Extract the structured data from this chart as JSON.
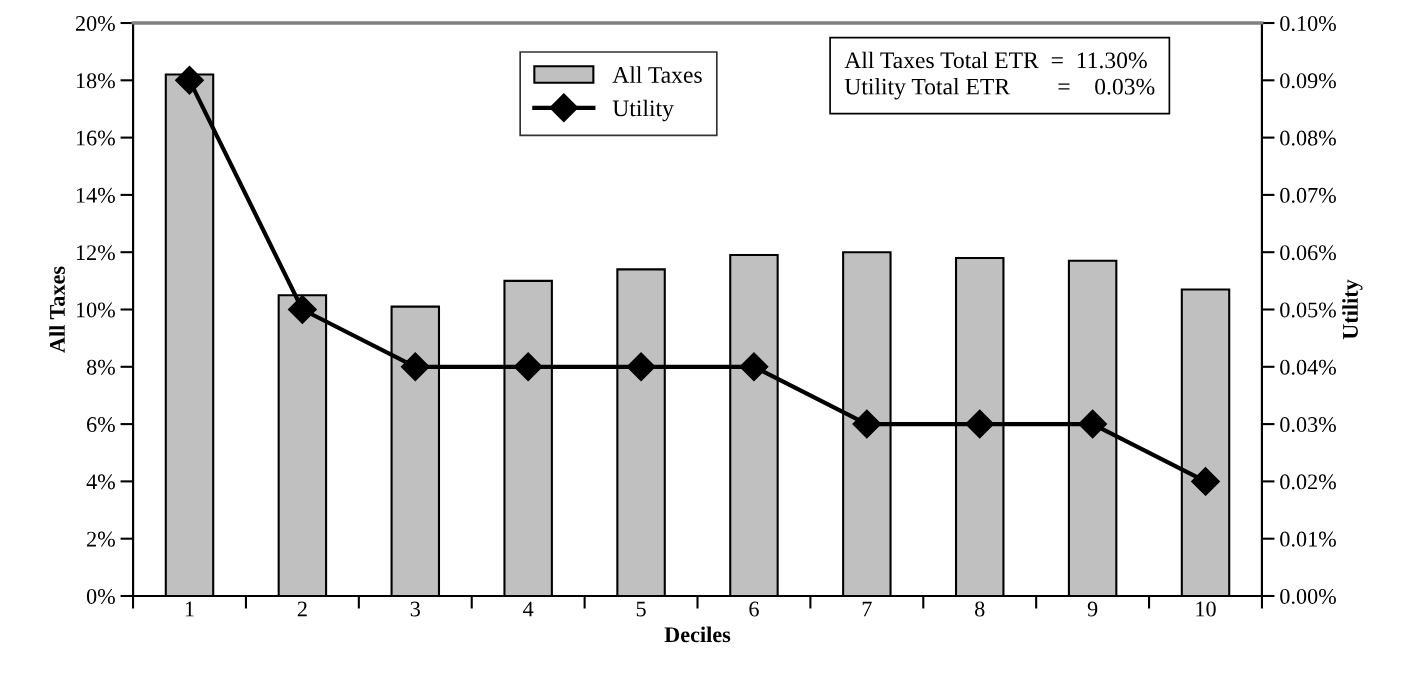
{
  "chart_data": {
    "type": "bar",
    "xlabel": "Deciles",
    "ylabel": "All Taxes",
    "y2label": "Utility",
    "categories": [
      "1",
      "2",
      "3",
      "4",
      "5",
      "6",
      "7",
      "8",
      "9",
      "10"
    ],
    "series": [
      {
        "name": "All Taxes",
        "color": "#c0c0c0",
        "values": [
          18.2,
          10.5,
          10.1,
          11.0,
          11.4,
          11.9,
          12.0,
          11.8,
          11.7,
          10.7
        ]
      },
      {
        "name": "Utility",
        "type": "line",
        "axis": "y2",
        "color": "#000000",
        "values": [
          0.09,
          0.05,
          0.04,
          0.04,
          0.04,
          0.04,
          0.03,
          0.03,
          0.03,
          0.02
        ]
      }
    ],
    "ylim": [
      0,
      20
    ],
    "yticks": [
      {
        "value": 0,
        "label": "0%"
      },
      {
        "value": 2,
        "label": "2%"
      },
      {
        "value": 4,
        "label": "4%"
      },
      {
        "value": 6,
        "label": "6%"
      },
      {
        "value": 8,
        "label": "8%"
      },
      {
        "value": 10,
        "label": "10%"
      },
      {
        "value": 12,
        "label": "12%"
      },
      {
        "value": 14,
        "label": "14%"
      },
      {
        "value": 16,
        "label": "16%"
      },
      {
        "value": 18,
        "label": "18%"
      },
      {
        "value": 20,
        "label": "20%"
      }
    ],
    "y2lim": [
      0,
      0.1
    ],
    "y2ticks": [
      {
        "value": 0,
        "label": "0.00%"
      },
      {
        "value": 0.01,
        "label": "0.01%"
      },
      {
        "value": 0.02,
        "label": "0.02%"
      },
      {
        "value": 0.03,
        "label": "0.03%"
      },
      {
        "value": 0.04,
        "label": "0.04%"
      },
      {
        "value": 0.05,
        "label": "0.05%"
      },
      {
        "value": 0.06,
        "label": "0.06%"
      },
      {
        "value": 0.07,
        "label": "0.07%"
      },
      {
        "value": 0.08,
        "label": "0.08%"
      },
      {
        "value": 0.09,
        "label": "0.09%"
      },
      {
        "value": 0.1,
        "label": "0.10%"
      }
    ],
    "annotations": [
      "All Taxes Total ETR  =  11.30%",
      "Utility Total ETR        =    0.03%"
    ],
    "legend": "top",
    "marker": "diamond",
    "grid": false
  }
}
